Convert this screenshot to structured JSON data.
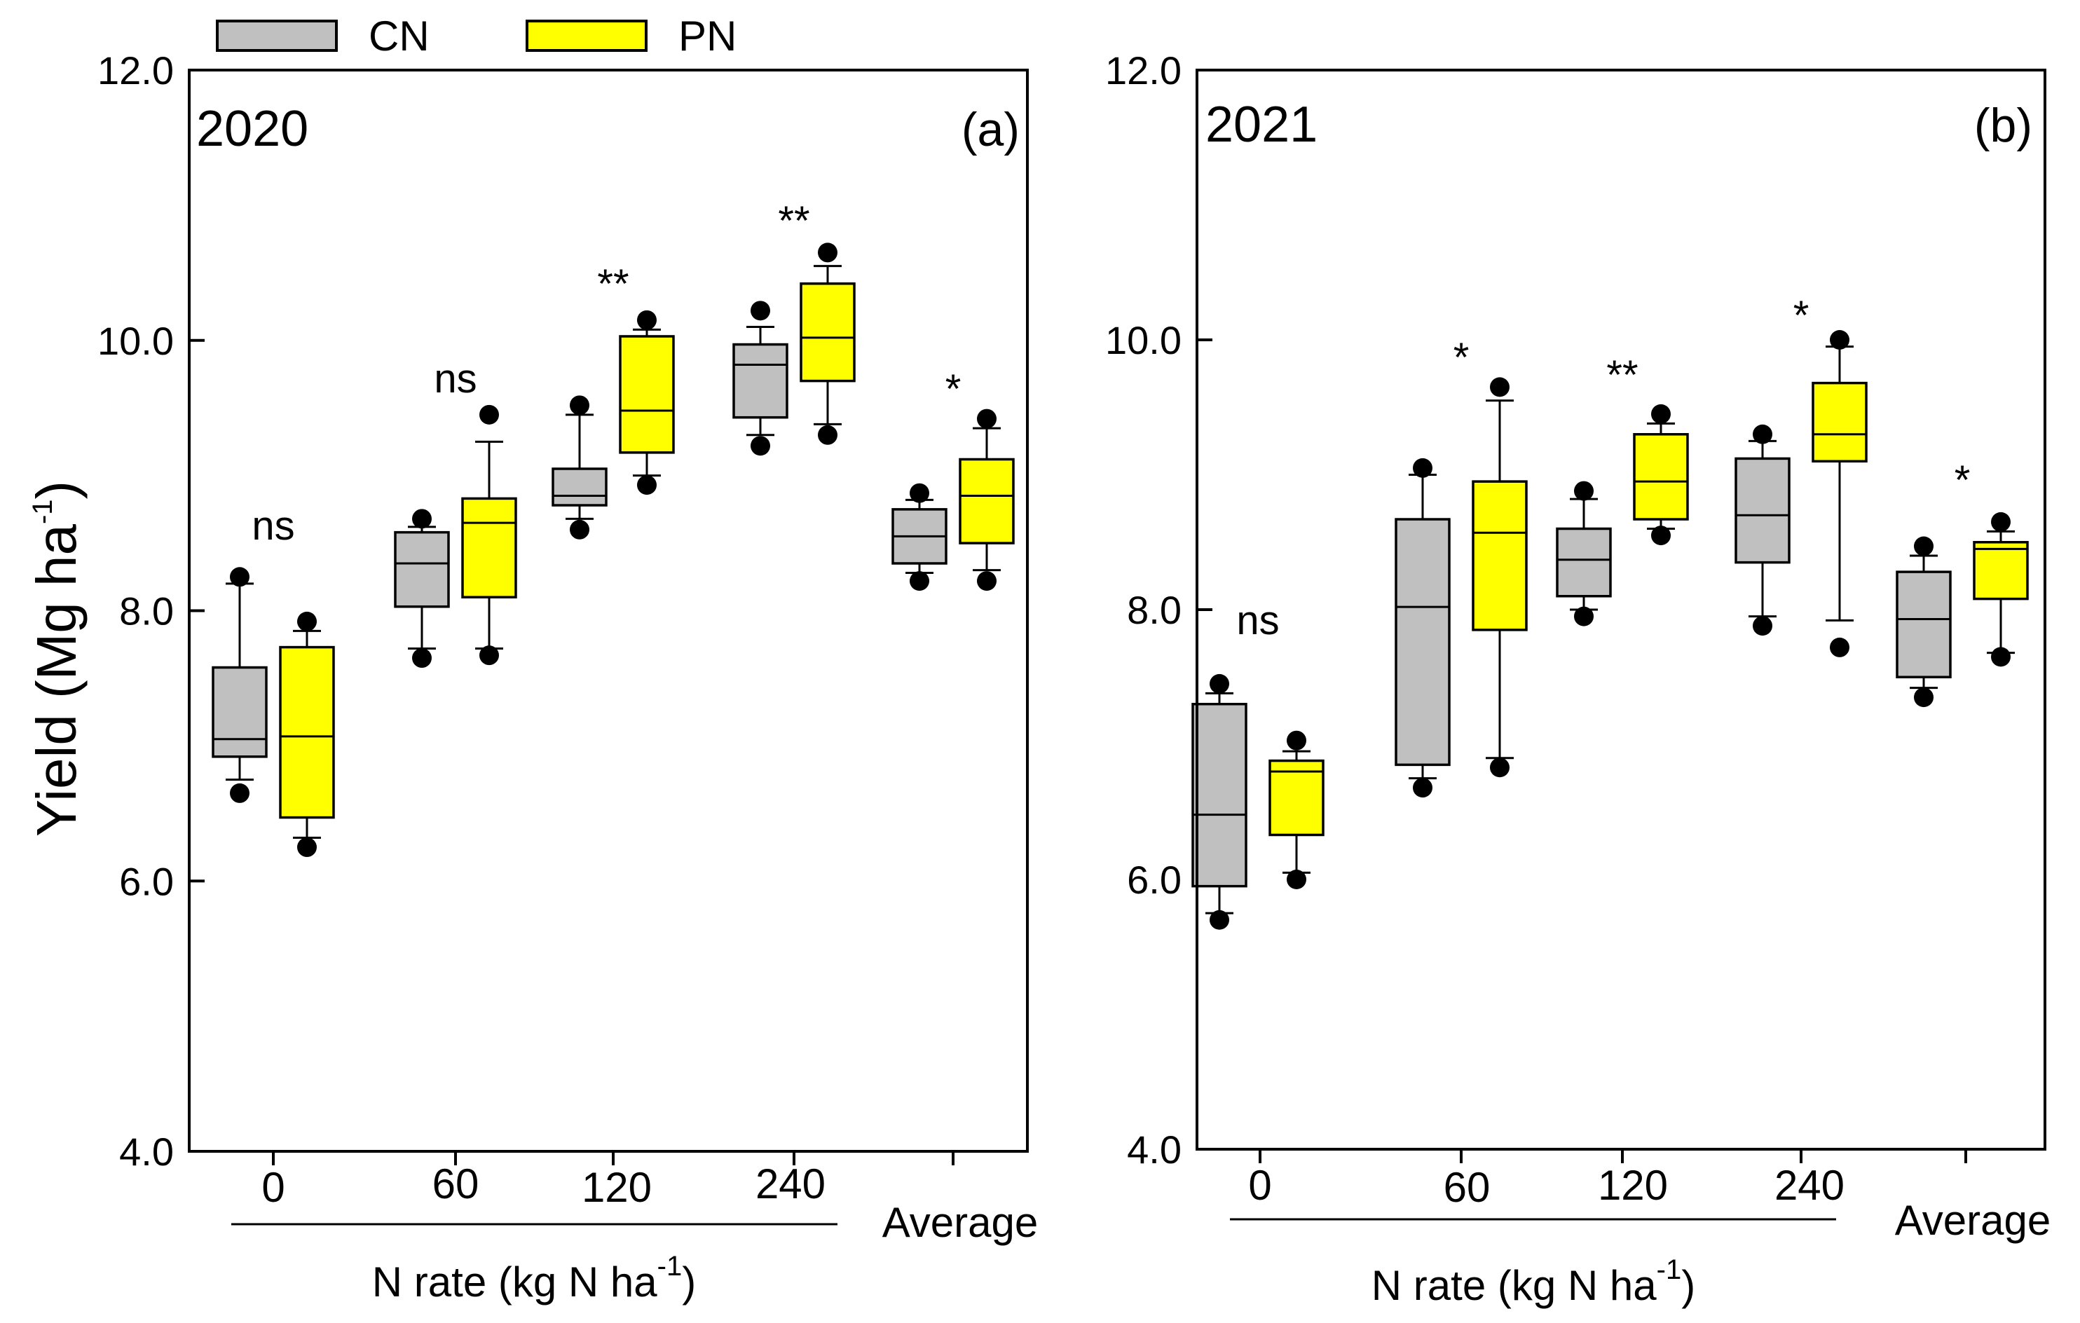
{
  "legend": {
    "items": [
      {
        "label": "CN",
        "color": "#c0c0c0"
      },
      {
        "label": "PN",
        "color": "#ffff00"
      }
    ]
  },
  "y_axis": {
    "label": "Yield (Mg ha",
    "label_sup": "-1",
    "label_close": ")"
  },
  "chart_data": [
    {
      "type": "box",
      "panel_year": "2020",
      "panel_letter": "(a)",
      "ylim": [
        4.0,
        12.0
      ],
      "yticks": [
        "4.0",
        "6.0",
        "8.0",
        "10.0",
        "12.0"
      ],
      "ytick_values": [
        4.0,
        6.0,
        8.0,
        10.0,
        12.0
      ],
      "categories": [
        "0",
        "60",
        "120",
        "240",
        "Average"
      ],
      "xlabel": "N rate (kg N ha",
      "xlabel_sup": "-1",
      "xlabel_close": ")",
      "significance": [
        "ns",
        "ns",
        "**",
        "**",
        "*"
      ],
      "series": [
        {
          "name": "CN",
          "color": "#c0c0c0",
          "boxes": [
            {
              "whislo": 6.75,
              "q1": 6.92,
              "med": 7.05,
              "q3": 7.58,
              "whishi": 8.2,
              "fliers": [
                6.65,
                8.25
              ]
            },
            {
              "whislo": 7.72,
              "q1": 8.03,
              "med": 8.35,
              "q3": 8.58,
              "whishi": 8.62,
              "fliers": [
                7.65,
                8.68
              ]
            },
            {
              "whislo": 8.68,
              "q1": 8.78,
              "med": 8.85,
              "q3": 9.05,
              "whishi": 9.45,
              "fliers": [
                8.6,
                9.52
              ]
            },
            {
              "whislo": 9.3,
              "q1": 9.43,
              "med": 9.82,
              "q3": 9.97,
              "whishi": 10.1,
              "fliers": [
                9.22,
                10.22
              ]
            },
            {
              "whislo": 8.28,
              "q1": 8.35,
              "med": 8.55,
              "q3": 8.75,
              "whishi": 8.82,
              "fliers": [
                8.22,
                8.87
              ]
            }
          ]
        },
        {
          "name": "PN",
          "color": "#ffff00",
          "boxes": [
            {
              "whislo": 6.32,
              "q1": 6.47,
              "med": 7.07,
              "q3": 7.73,
              "whishi": 7.85,
              "fliers": [
                6.25,
                7.92
              ]
            },
            {
              "whislo": 7.72,
              "q1": 8.1,
              "med": 8.65,
              "q3": 8.83,
              "whishi": 9.25,
              "fliers": [
                7.67,
                9.45
              ]
            },
            {
              "whislo": 9.0,
              "q1": 9.17,
              "med": 9.48,
              "q3": 10.03,
              "whishi": 10.08,
              "fliers": [
                8.93,
                10.15
              ]
            },
            {
              "whislo": 9.38,
              "q1": 9.7,
              "med": 10.02,
              "q3": 10.42,
              "whishi": 10.55,
              "fliers": [
                9.3,
                10.65
              ]
            },
            {
              "whislo": 8.3,
              "q1": 8.5,
              "med": 8.85,
              "q3": 9.12,
              "whishi": 9.35,
              "fliers": [
                8.22,
                9.42
              ]
            }
          ]
        }
      ]
    },
    {
      "type": "box",
      "panel_year": "2021",
      "panel_letter": "(b)",
      "ylim": [
        4.0,
        12.0
      ],
      "yticks": [
        "4.0",
        "6.0",
        "8.0",
        "10.0",
        "12.0"
      ],
      "ytick_values": [
        4.0,
        6.0,
        8.0,
        10.0,
        12.0
      ],
      "categories": [
        "0",
        "60",
        "120",
        "240",
        "Average"
      ],
      "xlabel": "N rate (kg N ha",
      "xlabel_sup": "-1",
      "xlabel_close": ")",
      "significance": [
        "ns",
        "*",
        "**",
        "*",
        "*"
      ],
      "series": [
        {
          "name": "CN",
          "color": "#c0c0c0",
          "boxes": [
            {
              "whislo": 5.75,
              "q1": 5.95,
              "med": 6.48,
              "q3": 7.3,
              "whishi": 7.38,
              "fliers": [
                5.7,
                7.45
              ]
            },
            {
              "whislo": 6.75,
              "q1": 6.85,
              "med": 8.02,
              "q3": 8.67,
              "whishi": 9.0,
              "fliers": [
                6.68,
                9.05
              ]
            },
            {
              "whislo": 8.0,
              "q1": 8.1,
              "med": 8.37,
              "q3": 8.6,
              "whishi": 8.82,
              "fliers": [
                7.95,
                8.88
              ]
            },
            {
              "whislo": 7.95,
              "q1": 8.35,
              "med": 8.7,
              "q3": 9.12,
              "whishi": 9.25,
              "fliers": [
                7.88,
                9.3
              ]
            },
            {
              "whislo": 7.42,
              "q1": 7.5,
              "med": 7.93,
              "q3": 8.28,
              "whishi": 8.4,
              "fliers": [
                7.35,
                8.47
              ]
            }
          ]
        },
        {
          "name": "PN",
          "color": "#ffff00",
          "boxes": [
            {
              "whislo": 6.05,
              "q1": 6.33,
              "med": 6.8,
              "q3": 6.88,
              "whishi": 6.95,
              "fliers": [
                6.0,
                7.03
              ]
            },
            {
              "whislo": 6.9,
              "q1": 7.85,
              "med": 8.57,
              "q3": 8.95,
              "whishi": 9.55,
              "fliers": [
                6.83,
                9.65
              ]
            },
            {
              "whislo": 8.6,
              "q1": 8.67,
              "med": 8.95,
              "q3": 9.3,
              "whishi": 9.38,
              "fliers": [
                8.55,
                9.45
              ]
            },
            {
              "whislo": 7.92,
              "q1": 9.1,
              "med": 9.3,
              "q3": 9.68,
              "whishi": 9.95,
              "fliers": [
                7.72,
                10.0
              ]
            },
            {
              "whislo": 7.68,
              "q1": 8.08,
              "med": 8.45,
              "q3": 8.5,
              "whishi": 8.58,
              "fliers": [
                7.65,
                8.65
              ]
            }
          ]
        }
      ]
    }
  ]
}
